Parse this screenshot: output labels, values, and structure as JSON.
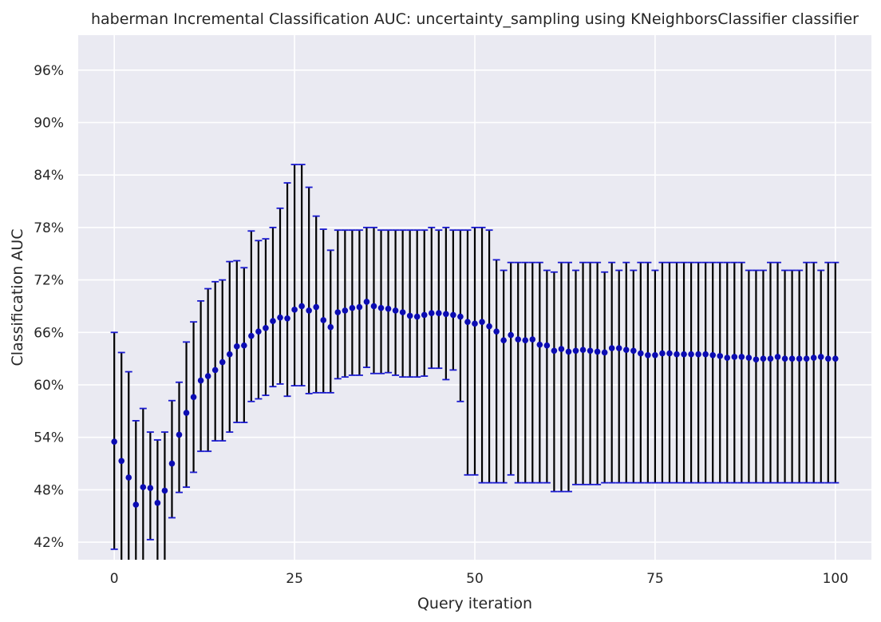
{
  "chart_data": {
    "type": "scatter",
    "title": "haberman Incremental Classification AUC: uncertainty_sampling using KNeighborsClassifier classifier",
    "xlabel": "Query iteration",
    "ylabel": "Classification AUC",
    "xlim": [
      -5,
      105
    ],
    "ylim": [
      0.4,
      1.0
    ],
    "x_ticks": [
      0,
      25,
      50,
      75,
      100
    ],
    "x_tick_labels": [
      "0",
      "25",
      "50",
      "75",
      "100"
    ],
    "y_ticks": [
      0.42,
      0.48,
      0.54,
      0.6,
      0.66,
      0.72,
      0.78,
      0.84,
      0.9,
      0.96
    ],
    "y_tick_labels": [
      "42%",
      "48%",
      "54%",
      "60%",
      "66%",
      "72%",
      "78%",
      "84%",
      "90%",
      "96%"
    ],
    "grid": true,
    "colors": {
      "background": "#eaeaf2",
      "grid": "#ffffff",
      "marker": "#0b0bb3",
      "errorbar": "#000000",
      "cap": "#1a1ad0"
    },
    "series": [
      {
        "x": [
          0,
          1,
          2,
          3,
          4,
          5,
          6,
          7,
          8,
          9,
          10,
          11,
          12,
          13,
          14,
          15,
          16,
          17,
          18,
          19,
          20,
          21,
          22,
          23,
          24,
          25,
          26,
          27,
          28,
          29,
          30,
          31,
          32,
          33,
          34,
          35,
          36,
          37,
          38,
          39,
          40,
          41,
          42,
          43,
          44,
          45,
          46,
          47,
          48,
          49,
          50,
          51,
          52,
          53,
          54,
          55,
          56,
          57,
          58,
          59,
          60,
          61,
          62,
          63,
          64,
          65,
          66,
          67,
          68,
          69,
          70,
          71,
          72,
          73,
          74,
          75,
          76,
          77,
          78,
          79,
          80,
          81,
          82,
          83,
          84,
          85,
          86,
          87,
          88,
          89,
          90,
          91,
          92,
          93,
          94,
          95,
          96,
          97,
          98,
          99,
          100
        ],
        "y": [
          0.535,
          0.513,
          0.494,
          0.463,
          0.483,
          0.482,
          0.465,
          0.479,
          0.51,
          0.543,
          0.568,
          0.586,
          0.605,
          0.61,
          0.617,
          0.626,
          0.635,
          0.644,
          0.645,
          0.656,
          0.661,
          0.665,
          0.673,
          0.677,
          0.676,
          0.686,
          0.69,
          0.685,
          0.689,
          0.674,
          0.666,
          0.683,
          0.685,
          0.688,
          0.689,
          0.695,
          0.69,
          0.688,
          0.687,
          0.685,
          0.683,
          0.679,
          0.678,
          0.68,
          0.682,
          0.682,
          0.681,
          0.68,
          0.678,
          0.672,
          0.67,
          0.672,
          0.667,
          0.661,
          0.651,
          0.657,
          0.652,
          0.651,
          0.652,
          0.646,
          0.645,
          0.639,
          0.641,
          0.638,
          0.639,
          0.64,
          0.639,
          0.638,
          0.637,
          0.642,
          0.642,
          0.64,
          0.639,
          0.636,
          0.634,
          0.634,
          0.636,
          0.636,
          0.635,
          0.635,
          0.635,
          0.635,
          0.635,
          0.634,
          0.633,
          0.631,
          0.632,
          0.632,
          0.631,
          0.629,
          0.63,
          0.63,
          0.632,
          0.63,
          0.63,
          0.63,
          0.63,
          0.631,
          0.632,
          0.63,
          0.63
        ],
        "lower": [
          0.412,
          0.3,
          0.3,
          0.3,
          0.3,
          0.423,
          0.3,
          0.3,
          0.448,
          0.477,
          0.483,
          0.5,
          0.524,
          0.524,
          0.536,
          0.536,
          0.546,
          0.557,
          0.557,
          0.581,
          0.584,
          0.588,
          0.598,
          0.601,
          0.587,
          0.599,
          0.599,
          0.59,
          0.591,
          0.591,
          0.591,
          0.607,
          0.609,
          0.611,
          0.611,
          0.62,
          0.613,
          0.613,
          0.614,
          0.611,
          0.609,
          0.609,
          0.609,
          0.61,
          0.619,
          0.619,
          0.606,
          0.617,
          0.581,
          0.497,
          0.497,
          0.488,
          0.488,
          0.488,
          0.488,
          0.497,
          0.488,
          0.488,
          0.488,
          0.488,
          0.488,
          0.478,
          0.478,
          0.478,
          0.486,
          0.486,
          0.486,
          0.486,
          0.488,
          0.488,
          0.488,
          0.488,
          0.488,
          0.488,
          0.488,
          0.488,
          0.488,
          0.488,
          0.488,
          0.488,
          0.488,
          0.488,
          0.488,
          0.488,
          0.488,
          0.488,
          0.488,
          0.488,
          0.488,
          0.488,
          0.488,
          0.488,
          0.488,
          0.488,
          0.488,
          0.488,
          0.488,
          0.488,
          0.488,
          0.488,
          0.488
        ],
        "upper": [
          0.66,
          0.637,
          0.615,
          0.559,
          0.573,
          0.546,
          0.537,
          0.546,
          0.582,
          0.603,
          0.649,
          0.672,
          0.696,
          0.71,
          0.718,
          0.72,
          0.741,
          0.742,
          0.734,
          0.776,
          0.765,
          0.767,
          0.78,
          0.802,
          0.831,
          0.852,
          0.852,
          0.826,
          0.793,
          0.778,
          0.754,
          0.777,
          0.777,
          0.777,
          0.777,
          0.78,
          0.78,
          0.777,
          0.777,
          0.777,
          0.777,
          0.777,
          0.777,
          0.777,
          0.78,
          0.777,
          0.78,
          0.777,
          0.777,
          0.777,
          0.78,
          0.78,
          0.777,
          0.743,
          0.731,
          0.74,
          0.74,
          0.74,
          0.74,
          0.74,
          0.731,
          0.729,
          0.74,
          0.74,
          0.731,
          0.74,
          0.74,
          0.74,
          0.729,
          0.74,
          0.731,
          0.74,
          0.731,
          0.74,
          0.74,
          0.731,
          0.74,
          0.74,
          0.74,
          0.74,
          0.74,
          0.74,
          0.74,
          0.74,
          0.74,
          0.74,
          0.74,
          0.74,
          0.731,
          0.731,
          0.731,
          0.74,
          0.74,
          0.731,
          0.731,
          0.731,
          0.74,
          0.74,
          0.731,
          0.74,
          0.74
        ]
      }
    ]
  }
}
